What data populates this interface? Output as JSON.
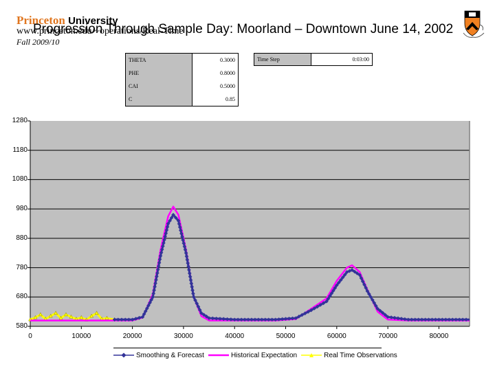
{
  "header": {
    "university_name": "Princeton",
    "university_suffix": "University",
    "url_text": "www.princeton.edu/~operations/Real-Time",
    "title": "Progression Through Sample Day:   Moorland – Downtown June 14, 2002",
    "subtitle": "Fall 2009/10",
    "logo": "princeton-shield-icon",
    "colors": {
      "brand_orange": "#e0761f"
    }
  },
  "parameters": [
    {
      "key": "THETA",
      "value": "0.3000"
    },
    {
      "key": "PHE",
      "value": "0.8000"
    },
    {
      "key": "CAI",
      "value": "0.5000"
    },
    {
      "key": "C",
      "value": "0.85"
    }
  ],
  "time_step": {
    "key": "Time Step",
    "value": "0:03:00"
  },
  "chart_data": {
    "type": "line",
    "title": "",
    "xlabel": "",
    "ylabel": "",
    "xlim": [
      0,
      86000
    ],
    "ylim": [
      580,
      1280
    ],
    "x_ticks": [
      "0",
      "10000",
      "20000",
      "30000",
      "40000",
      "50000",
      "60000",
      "70000",
      "80000"
    ],
    "y_ticks": [
      "1280",
      "1180",
      "1080",
      "980",
      "880",
      "780",
      "680",
      "580"
    ],
    "grid": true,
    "plot_background": "#c0c0c0",
    "legend_position": "bottom",
    "series": [
      {
        "name": "Smoothing & Forecast",
        "color": "#333399",
        "marker": "diamond",
        "x": [
          16500,
          20000,
          22000,
          24000,
          25500,
          27000,
          28000,
          29000,
          30500,
          32000,
          33500,
          35000,
          40000,
          48000,
          52000,
          55000,
          58000,
          60000,
          62000,
          63000,
          64500,
          66000,
          68000,
          70000,
          74000,
          80000,
          86000
        ],
        "y": [
          603,
          603,
          612,
          680,
          820,
          930,
          960,
          940,
          830,
          680,
          625,
          608,
          603,
          603,
          608,
          635,
          665,
          720,
          765,
          772,
          755,
          700,
          640,
          612,
          603,
          603,
          603
        ]
      },
      {
        "name": "Historical Expectation",
        "color": "#ff00ff",
        "x": [
          0,
          20000,
          22000,
          24000,
          25500,
          27000,
          28000,
          29000,
          30500,
          32000,
          33500,
          35000,
          40000,
          48000,
          52000,
          55000,
          58000,
          60000,
          62000,
          63000,
          64500,
          66000,
          68000,
          70000,
          74000,
          80000,
          86000
        ],
        "y": [
          600,
          600,
          610,
          690,
          840,
          955,
          988,
          960,
          840,
          680,
          615,
          600,
          600,
          600,
          605,
          640,
          675,
          735,
          780,
          788,
          765,
          705,
          630,
          603,
          600,
          600,
          600
        ]
      },
      {
        "name": "Real Time Observations",
        "color": "#ffff00",
        "marker": "triangle",
        "x": [
          0,
          1000,
          2000,
          3000,
          4000,
          5000,
          6000,
          7000,
          8000,
          9000,
          10000,
          11000,
          12000,
          13000,
          14000,
          15000,
          16500
        ],
        "y": [
          603,
          610,
          620,
          605,
          615,
          625,
          608,
          620,
          612,
          605,
          610,
          602,
          615,
          625,
          605,
          608,
          603
        ]
      }
    ]
  },
  "legend": {
    "items": [
      {
        "label": "Smoothing & Forecast",
        "color": "#333399"
      },
      {
        "label": "Historical Expectation",
        "color": "#ff00ff"
      },
      {
        "label": "Real Time Observations",
        "color": "#ffff00"
      }
    ]
  }
}
